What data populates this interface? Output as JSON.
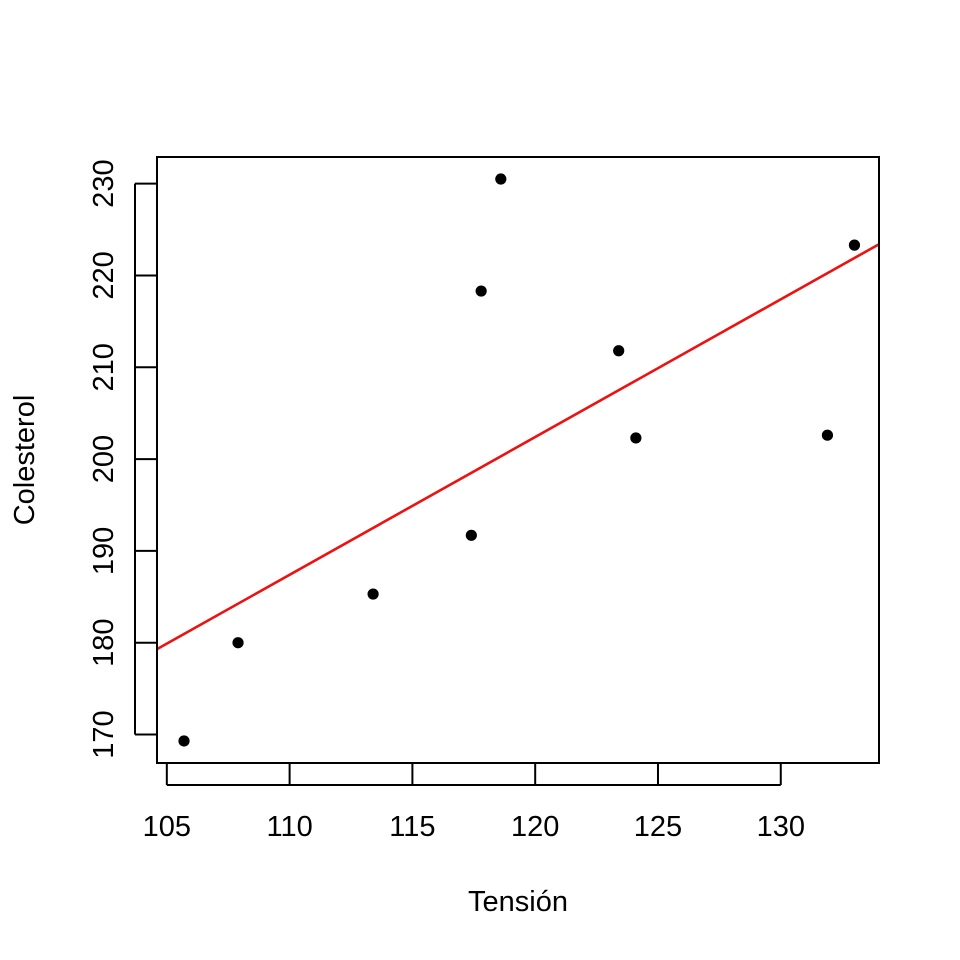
{
  "chart_data": {
    "type": "scatter",
    "xlabel": "Tensión",
    "ylabel": "Colesterol",
    "xlim": [
      104.6,
      134.0
    ],
    "ylim": [
      166.9,
      232.9
    ],
    "xticks": [
      105,
      110,
      115,
      120,
      125,
      130
    ],
    "yticks": [
      170,
      180,
      190,
      200,
      210,
      220,
      230
    ],
    "grid": false,
    "points": [
      {
        "x": 105.7,
        "y": 169.3
      },
      {
        "x": 107.9,
        "y": 180.0
      },
      {
        "x": 113.4,
        "y": 185.3
      },
      {
        "x": 117.4,
        "y": 191.7
      },
      {
        "x": 117.8,
        "y": 218.3
      },
      {
        "x": 118.6,
        "y": 230.5
      },
      {
        "x": 123.4,
        "y": 211.8
      },
      {
        "x": 124.1,
        "y": 202.3
      },
      {
        "x": 131.9,
        "y": 202.6
      },
      {
        "x": 133.0,
        "y": 223.3
      }
    ],
    "point_color": "#000000",
    "fit_line": {
      "slope": 1.5,
      "intercept": 22.4,
      "color": "#ee1111"
    }
  }
}
